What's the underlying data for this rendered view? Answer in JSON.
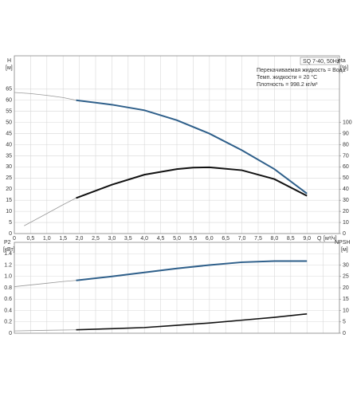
{
  "chart_data": [
    {
      "type": "line",
      "y_label": "H",
      "y_unit": "[м]",
      "y2_label": "eta",
      "y2_unit": "[%]",
      "x_label": "Q",
      "x_unit": "[м³/ч]",
      "annotations": [
        "SQ 7-40, 50Hz",
        "Перекачиваемая жидкость = Вода",
        "Темп. жидкости = 20 °C",
        "Плотность = 998.2 кг/м³"
      ],
      "xlim": [
        0,
        10
      ],
      "xticks": [
        0,
        {
          "value": 0.5,
          "label": "0,5"
        },
        {
          "value": 1,
          "label": "1,0"
        },
        {
          "value": 1.5,
          "label": "1,5"
        },
        {
          "value": 2,
          "label": "2,0"
        },
        {
          "value": 2.5,
          "label": "2,5"
        },
        {
          "value": 3,
          "label": "3,0"
        },
        {
          "value": 3.5,
          "label": "3,5"
        },
        {
          "value": 4,
          "label": "4,0"
        },
        {
          "value": 4.5,
          "label": "4,5"
        },
        {
          "value": 5,
          "label": "5,0"
        },
        {
          "value": 5.5,
          "label": "5,5"
        },
        {
          "value": 6,
          "label": "6,0"
        },
        {
          "value": 6.5,
          "label": "6,5"
        },
        {
          "value": 7,
          "label": "7,0"
        },
        {
          "value": 7.5,
          "label": "7,5"
        },
        {
          "value": 8,
          "label": "8,0"
        },
        {
          "value": 8.5,
          "label": "8,5"
        },
        {
          "value": 9,
          "label": "9,0"
        }
      ],
      "ylim": [
        0,
        80
      ],
      "yticks": [
        0,
        5,
        10,
        15,
        20,
        25,
        30,
        35,
        40,
        45,
        50,
        55,
        60,
        65
      ],
      "y2lim": [
        0,
        160
      ],
      "y2ticks": [
        0,
        10,
        20,
        30,
        40,
        50,
        60,
        70,
        80,
        90,
        100
      ],
      "grid": true,
      "series": [
        {
          "color": "#999999",
          "width": 0.8,
          "x": [
            0,
            0.5,
            1,
            1.5,
            1.9
          ],
          "values": [
            63.5,
            63,
            62.2,
            61.2,
            60
          ]
        },
        {
          "color": "#2e5f8a",
          "width": 2,
          "x": [
            1.9,
            3,
            4,
            5,
            6,
            7,
            8,
            9
          ],
          "values": [
            60,
            58,
            55.5,
            51,
            45,
            37.5,
            29,
            18
          ]
        },
        {
          "color": "#999999",
          "width": 0.8,
          "axis": "y2",
          "x": [
            0.3,
            1,
            1.5,
            1.9
          ],
          "values": [
            7,
            18,
            26,
            32
          ]
        },
        {
          "color": "#111111",
          "width": 2,
          "axis": "y2",
          "x": [
            1.9,
            3,
            4,
            5,
            5.5,
            6,
            7,
            8,
            9
          ],
          "values": [
            32,
            44,
            53,
            58,
            59.4,
            59.6,
            57,
            49,
            34
          ]
        }
      ]
    },
    {
      "type": "line",
      "y_label": "P2",
      "y_unit": "[кВт]",
      "y2_label": "NPSH",
      "y2_unit": "[м]",
      "xlim": [
        0,
        10
      ],
      "xticks": [
        0,
        0.5,
        1,
        1.5,
        2,
        2.5,
        3,
        3.5,
        4,
        4.5,
        5,
        5.5,
        6,
        6.5,
        7,
        7.5,
        8,
        8.5,
        9,
        9.5,
        10
      ],
      "ylim": [
        0,
        1.6
      ],
      "yticks": [
        0,
        0.2,
        0.4,
        0.6,
        0.8,
        {
          "value": 1,
          "label": "1.0"
        },
        1.2,
        1.4
      ],
      "y2lim": [
        0,
        40
      ],
      "y2ticks": [
        0,
        5,
        10,
        15,
        20,
        25,
        30
      ],
      "grid": true,
      "series": [
        {
          "color": "#999999",
          "width": 0.8,
          "x": [
            0,
            0.5,
            1,
            1.5,
            1.9
          ],
          "values": [
            0.82,
            0.85,
            0.88,
            0.91,
            0.93
          ]
        },
        {
          "color": "#2e5f8a",
          "width": 2,
          "x": [
            1.9,
            3,
            4,
            5,
            6,
            7,
            8,
            9
          ],
          "values": [
            0.93,
            1,
            1.07,
            1.14,
            1.2,
            1.25,
            1.27,
            1.27
          ]
        },
        {
          "color": "#999999",
          "width": 0.8,
          "axis": "y2",
          "x": [
            0,
            1,
            1.9
          ],
          "values": [
            1,
            1.3,
            1.5
          ]
        },
        {
          "color": "#111111",
          "width": 1.6,
          "axis": "y2",
          "x": [
            1.9,
            3,
            4,
            5,
            6,
            7,
            8,
            9
          ],
          "values": [
            1.5,
            2,
            2.5,
            3.5,
            4.5,
            5.75,
            7,
            8.5
          ]
        }
      ]
    }
  ]
}
